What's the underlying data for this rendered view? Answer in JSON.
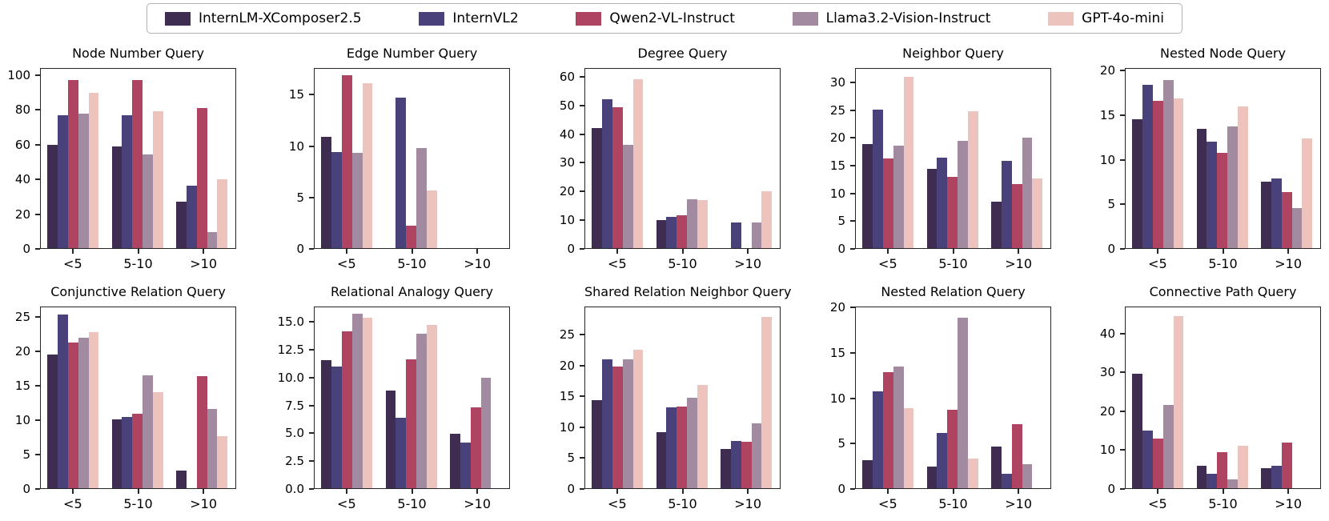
{
  "legend": {
    "items": [
      {
        "label": "InternLM-XComposer2.5",
        "color": "#3E2D50"
      },
      {
        "label": "InternVL2",
        "color": "#49427A"
      },
      {
        "label": "Qwen2-VL-Instruct",
        "color": "#AE4461"
      },
      {
        "label": "Llama3.2-Vision-Instruct",
        "color": "#A28BA0"
      },
      {
        "label": "GPT-4o-mini",
        "color": "#ECC3BD"
      }
    ]
  },
  "categories": [
    "<5",
    "5-10",
    ">10"
  ],
  "chart_data": [
    {
      "type": "bar",
      "title": "Node Number Query",
      "ymax": 104,
      "yticks": [
        "0",
        "20",
        "40",
        "60",
        "80",
        "100"
      ],
      "series": [
        {
          "name": "InternLM-XComposer2.5",
          "values": [
            60.2,
            59.5,
            27.3
          ]
        },
        {
          "name": "InternVL2",
          "values": [
            77.6,
            77.4,
            36.5
          ]
        },
        {
          "name": "Qwen2-VL-Instruct",
          "values": [
            98.0,
            98.0,
            81.9
          ]
        },
        {
          "name": "Llama3.2-Vision-Instruct",
          "values": [
            78.6,
            54.5,
            9.2
          ]
        },
        {
          "name": "GPT-4o-mini",
          "values": [
            90.6,
            80.1,
            40.1
          ]
        }
      ]
    },
    {
      "type": "bar",
      "title": "Edge Number Query",
      "ymax": 17.6,
      "yticks": [
        "0",
        "5",
        "10",
        "15"
      ],
      "series": [
        {
          "name": "InternLM-XComposer2.5",
          "values": [
            11.0,
            0,
            0
          ]
        },
        {
          "name": "InternVL2",
          "values": [
            9.5,
            14.9,
            0
          ]
        },
        {
          "name": "Qwen2-VL-Instruct",
          "values": [
            17.1,
            2.2,
            0
          ]
        },
        {
          "name": "Llama3.2-Vision-Instruct",
          "values": [
            9.4,
            9.9,
            0
          ]
        },
        {
          "name": "GPT-4o-mini",
          "values": [
            16.3,
            5.7,
            0
          ]
        }
      ]
    },
    {
      "type": "bar",
      "title": "Degree Query",
      "ymax": 63,
      "yticks": [
        "0",
        "10",
        "20",
        "30",
        "40",
        "50",
        "60"
      ],
      "series": [
        {
          "name": "InternLM-XComposer2.5",
          "values": [
            42.6,
            10.0,
            0
          ]
        },
        {
          "name": "InternVL2",
          "values": [
            52.6,
            11.0,
            9.1
          ]
        },
        {
          "name": "Qwen2-VL-Instruct",
          "values": [
            50.0,
            11.7,
            0
          ]
        },
        {
          "name": "Llama3.2-Vision-Instruct",
          "values": [
            36.5,
            17.3,
            9.1
          ]
        },
        {
          "name": "GPT-4o-mini",
          "values": [
            59.9,
            17.1,
            20.0
          ]
        }
      ]
    },
    {
      "type": "bar",
      "title": "Neighbor Query",
      "ymax": 32.6,
      "yticks": [
        "0",
        "5",
        "10",
        "15",
        "20",
        "25",
        "30"
      ],
      "series": [
        {
          "name": "InternLM-XComposer2.5",
          "values": [
            19.1,
            14.5,
            8.5
          ]
        },
        {
          "name": "InternVL2",
          "values": [
            25.4,
            16.6,
            16.0
          ]
        },
        {
          "name": "Qwen2-VL-Instruct",
          "values": [
            16.4,
            13.1,
            11.8
          ]
        },
        {
          "name": "Llama3.2-Vision-Instruct",
          "values": [
            18.7,
            19.6,
            20.2
          ]
        },
        {
          "name": "GPT-4o-mini",
          "values": [
            31.4,
            25.0,
            12.8
          ]
        }
      ]
    },
    {
      "type": "bar",
      "title": "Nested Node Query",
      "ymax": 20.3,
      "yticks": [
        "0",
        "5",
        "10",
        "15",
        "20"
      ],
      "series": [
        {
          "name": "InternLM-XComposer2.5",
          "values": [
            14.7,
            13.6,
            7.6
          ]
        },
        {
          "name": "InternVL2",
          "values": [
            18.6,
            12.1,
            7.9
          ]
        },
        {
          "name": "Qwen2-VL-Instruct",
          "values": [
            16.8,
            10.9,
            6.4
          ]
        },
        {
          "name": "Llama3.2-Vision-Instruct",
          "values": [
            19.2,
            13.9,
            4.6
          ]
        },
        {
          "name": "GPT-4o-mini",
          "values": [
            17.1,
            16.2,
            12.5
          ]
        }
      ]
    },
    {
      "type": "bar",
      "title": "Conjunctive Relation Query",
      "ymax": 26.5,
      "yticks": [
        "0",
        "5",
        "10",
        "15",
        "20",
        "25"
      ],
      "series": [
        {
          "name": "InternLM-XComposer2.5",
          "values": [
            19.7,
            10.2,
            2.6
          ]
        },
        {
          "name": "InternVL2",
          "values": [
            25.6,
            10.5,
            0
          ]
        },
        {
          "name": "Qwen2-VL-Instruct",
          "values": [
            21.5,
            11.0,
            16.5
          ]
        },
        {
          "name": "Llama3.2-Vision-Instruct",
          "values": [
            22.2,
            16.6,
            11.7
          ]
        },
        {
          "name": "GPT-4o-mini",
          "values": [
            23.0,
            14.2,
            7.7
          ]
        }
      ]
    },
    {
      "type": "bar",
      "title": "Relational Analogy Query",
      "ymax": 16.4,
      "yticks": [
        "0.0",
        "2.5",
        "5.0",
        "7.5",
        "10.0",
        "12.5",
        "15.0"
      ],
      "series": [
        {
          "name": "InternLM-XComposer2.5",
          "values": [
            11.7,
            8.9,
            5.0
          ]
        },
        {
          "name": "InternVL2",
          "values": [
            11.1,
            6.4,
            4.2
          ]
        },
        {
          "name": "Qwen2-VL-Instruct",
          "values": [
            14.3,
            11.8,
            7.4
          ]
        },
        {
          "name": "Llama3.2-Vision-Instruct",
          "values": [
            15.9,
            14.1,
            10.1
          ]
        },
        {
          "name": "GPT-4o-mini",
          "values": [
            15.6,
            14.9,
            0
          ]
        }
      ]
    },
    {
      "type": "bar",
      "title": "Shared Relation Neighbor Query",
      "ymax": 29.6,
      "yticks": [
        "0",
        "5",
        "10",
        "15",
        "20",
        "25"
      ],
      "series": [
        {
          "name": "InternLM-XComposer2.5",
          "values": [
            14.5,
            9.2,
            6.5
          ]
        },
        {
          "name": "InternVL2",
          "values": [
            21.3,
            13.3,
            7.8
          ]
        },
        {
          "name": "Qwen2-VL-Instruct",
          "values": [
            20.0,
            13.4,
            7.6
          ]
        },
        {
          "name": "Llama3.2-Vision-Instruct",
          "values": [
            21.2,
            14.9,
            10.7
          ]
        },
        {
          "name": "GPT-4o-mini",
          "values": [
            22.8,
            17.0,
            28.2
          ]
        }
      ]
    },
    {
      "type": "bar",
      "title": "Nested Relation Query",
      "ymax": 20.1,
      "yticks": [
        "0",
        "5",
        "10",
        "15",
        "20"
      ],
      "series": [
        {
          "name": "InternLM-XComposer2.5",
          "values": [
            3.1,
            2.4,
            4.7
          ]
        },
        {
          "name": "InternVL2",
          "values": [
            10.8,
            6.2,
            1.6
          ]
        },
        {
          "name": "Qwen2-VL-Instruct",
          "values": [
            13.0,
            8.8,
            7.2
          ]
        },
        {
          "name": "Llama3.2-Vision-Instruct",
          "values": [
            13.6,
            19.1,
            2.7
          ]
        },
        {
          "name": "GPT-4o-mini",
          "values": [
            9.0,
            3.3,
            0
          ]
        }
      ]
    },
    {
      "type": "bar",
      "title": "Connective Path Query",
      "ymax": 47,
      "yticks": [
        "0",
        "10",
        "20",
        "30",
        "40"
      ],
      "series": [
        {
          "name": "InternLM-XComposer2.5",
          "values": [
            30.0,
            5.8,
            5.3
          ]
        },
        {
          "name": "InternVL2",
          "values": [
            15.0,
            3.8,
            5.8
          ]
        },
        {
          "name": "Qwen2-VL-Instruct",
          "values": [
            13.0,
            9.5,
            12.0
          ]
        },
        {
          "name": "Llama3.2-Vision-Instruct",
          "values": [
            21.7,
            2.4,
            0
          ]
        },
        {
          "name": "GPT-4o-mini",
          "values": [
            45.0,
            11.0,
            0
          ]
        }
      ]
    }
  ]
}
